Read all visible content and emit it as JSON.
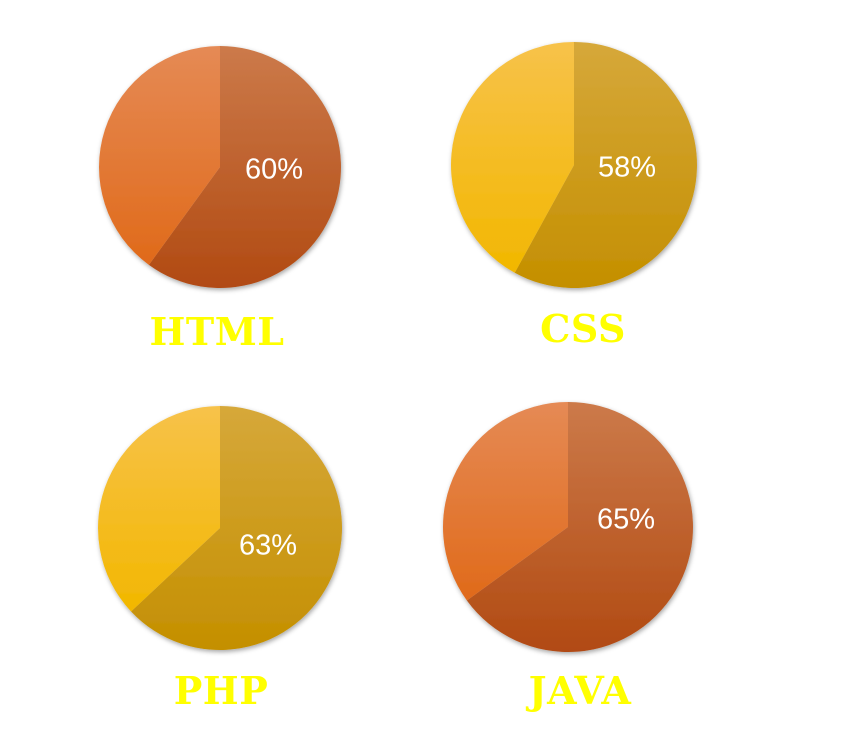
{
  "theme": {
    "label_color": "#FFFF00"
  },
  "chart_data": [
    {
      "type": "pie",
      "title": "HTML",
      "value_percent": 60,
      "value_label": "60%",
      "palette": {
        "value_light": "#CC7A4A",
        "value_dark": "#B14A12",
        "rest_light": "#E58A55",
        "rest_dark": "#E06A1A"
      }
    },
    {
      "type": "pie",
      "title": "CSS",
      "value_percent": 58,
      "value_label": "58%",
      "palette": {
        "value_light": "#D6A83A",
        "value_dark": "#C48F00",
        "rest_light": "#F7C24A",
        "rest_dark": "#F2B700"
      }
    },
    {
      "type": "pie",
      "title": "PHP",
      "value_percent": 63,
      "value_label": "63%",
      "palette": {
        "value_light": "#D6A83A",
        "value_dark": "#C48F00",
        "rest_light": "#F7C24A",
        "rest_dark": "#F2B700"
      }
    },
    {
      "type": "pie",
      "title": "JAVA",
      "value_percent": 65,
      "value_label": "65%",
      "palette": {
        "value_light": "#CC7A4A",
        "value_dark": "#B14A12",
        "rest_light": "#E58A55",
        "rest_dark": "#E06A1A"
      }
    }
  ]
}
